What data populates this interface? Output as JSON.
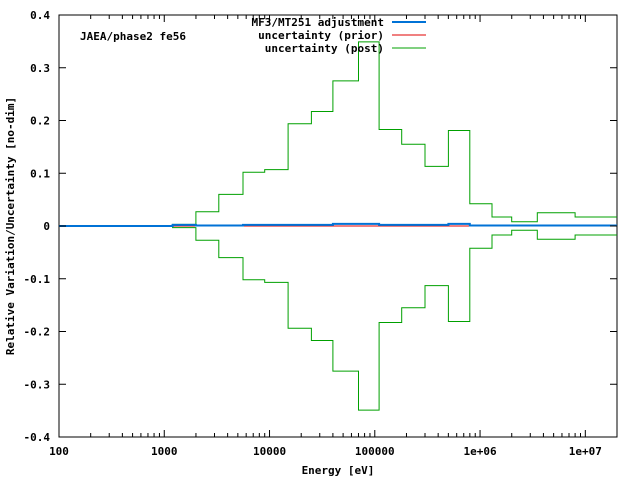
{
  "chart_data": {
    "type": "line",
    "annotation": "JAEA/phase2 fe56",
    "xlabel": "Energy [eV]",
    "ylabel": "Relative Variation/Uncertainty [no-dim]",
    "xscale": "log",
    "xlim": [
      100,
      20000000
    ],
    "ylim": [
      -0.4,
      0.4
    ],
    "grid": false,
    "legend_position": "top-right",
    "x_tick_values": [
      100,
      1000,
      10000,
      100000,
      1000000,
      10000000
    ],
    "x_tick_labels": [
      "100",
      "1000",
      "10000",
      "100000",
      "1e+06",
      "1e+07"
    ],
    "y_tick_values": [
      -0.4,
      -0.3,
      -0.2,
      -0.1,
      0,
      0.1,
      0.2,
      0.3,
      0.4
    ],
    "y_tick_labels": [
      "-0.4",
      "-0.3",
      "-0.2",
      "-0.1",
      "0",
      "0.1",
      "0.2",
      "0.3",
      "0.4"
    ],
    "bin_edges": [
      100,
      1200,
      2000,
      3300,
      5600,
      9000,
      15000,
      25000,
      40000,
      70000,
      110000,
      180000,
      300000,
      500000,
      800000,
      1300000,
      2000000,
      3500000,
      8000000,
      20000000
    ],
    "series": [
      {
        "name": "MF3/MT251 adjustment",
        "color": "#0072d6",
        "style": "step",
        "values": [
          0.0,
          0.002,
          0.001,
          0.001,
          0.002,
          0.002,
          0.002,
          0.002,
          0.004,
          0.004,
          0.002,
          0.002,
          0.002,
          0.004,
          0.001,
          0.001,
          0.001,
          0.001,
          0.001
        ]
      },
      {
        "name": "uncertainty (prior)",
        "color": "#e00000",
        "style": "step-symmetric",
        "values": [
          0.0,
          0.0,
          0.0,
          0.0,
          0.0,
          0.0,
          0.0,
          0.0,
          0.0,
          0.0,
          0.0,
          0.0,
          0.0,
          0.0,
          0.0,
          0.0,
          0.0,
          0.0,
          0.0
        ]
      },
      {
        "name": "uncertainty (post)",
        "color": "#00a000",
        "style": "step-symmetric",
        "values": [
          0.0,
          0.003,
          0.027,
          0.06,
          0.102,
          0.107,
          0.194,
          0.217,
          0.275,
          0.349,
          0.183,
          0.155,
          0.113,
          0.181,
          0.042,
          0.017,
          0.008,
          0.025,
          0.017
        ]
      }
    ]
  }
}
